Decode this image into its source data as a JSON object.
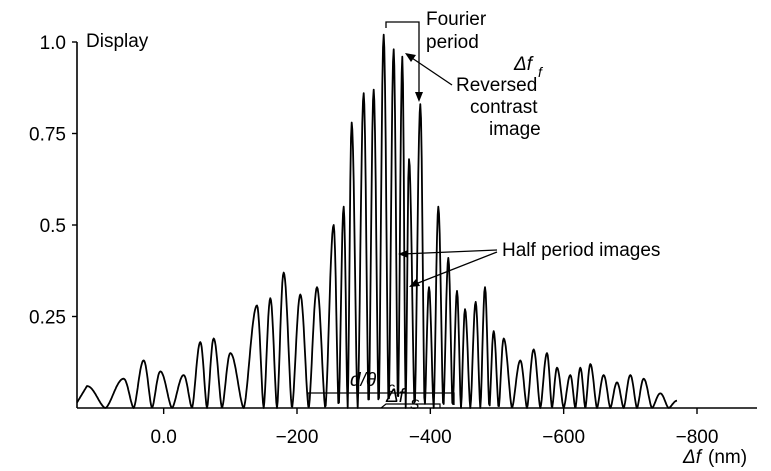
{
  "chart_data": {
    "type": "line",
    "ylabel": "Display",
    "xlabel_symbol": "Δf",
    "xlabel_unit": "(nm)",
    "xlim": [
      130,
      -890
    ],
    "ylim": [
      0,
      1.0
    ],
    "x_ticks": [
      {
        "value": 0,
        "label": "0.0"
      },
      {
        "value": -200,
        "label": "−200"
      },
      {
        "value": -400,
        "label": "−400"
      },
      {
        "value": -600,
        "label": "−600"
      },
      {
        "value": -800,
        "label": "−800"
      }
    ],
    "y_ticks": [
      {
        "value": 0.25,
        "label": "0.25"
      },
      {
        "value": 0.5,
        "label": "0.5"
      },
      {
        "value": 0.75,
        "label": "0.75"
      },
      {
        "value": 1.0,
        "label": "1.0"
      }
    ],
    "series": [
      {
        "peaks": [
          [
            115,
            0.06
          ],
          [
            60,
            0.08
          ],
          [
            30,
            0.13
          ],
          [
            5,
            0.1
          ],
          [
            -30,
            0.09
          ],
          [
            -55,
            0.18
          ],
          [
            -75,
            0.19
          ],
          [
            -100,
            0.15
          ],
          [
            -140,
            0.28
          ],
          [
            -160,
            0.3
          ],
          [
            -180,
            0.37
          ],
          [
            -205,
            0.31
          ],
          [
            -230,
            0.33
          ],
          [
            -255,
            0.5
          ],
          [
            -270,
            0.55
          ],
          [
            -282,
            0.78
          ],
          [
            -300,
            0.86
          ],
          [
            -315,
            0.87
          ],
          [
            -330,
            1.02
          ],
          [
            -345,
            0.98
          ],
          [
            -358,
            0.96
          ],
          [
            -368,
            0.68
          ],
          [
            -385,
            0.83
          ],
          [
            -398,
            0.33
          ],
          [
            -412,
            0.55
          ],
          [
            -427,
            0.41
          ],
          [
            -440,
            0.32
          ],
          [
            -452,
            0.27
          ],
          [
            -468,
            0.29
          ],
          [
            -482,
            0.33
          ],
          [
            -495,
            0.21
          ],
          [
            -510,
            0.19
          ],
          [
            -535,
            0.13
          ],
          [
            -555,
            0.16
          ],
          [
            -575,
            0.15
          ],
          [
            -590,
            0.11
          ],
          [
            -610,
            0.09
          ],
          [
            -625,
            0.11
          ],
          [
            -640,
            0.12
          ],
          [
            -660,
            0.09
          ],
          [
            -680,
            0.07
          ],
          [
            -700,
            0.09
          ],
          [
            -720,
            0.08
          ],
          [
            -745,
            0.04
          ],
          [
            -770,
            0.02
          ]
        ]
      }
    ],
    "annotations": {
      "fourier_line1": "Fourier",
      "fourier_line2": "period",
      "delta_ff_symbol": "Δf",
      "delta_ff_sub": "f",
      "reversed_line1": "Reversed",
      "reversed_line2": "contrast",
      "reversed_line3": "image",
      "half_period": "Half period images",
      "dtheta_main": "d/θ",
      "dtheta_sub": "c",
      "delta_fs_symbol": "Δf",
      "delta_fs_sub": "S"
    }
  }
}
